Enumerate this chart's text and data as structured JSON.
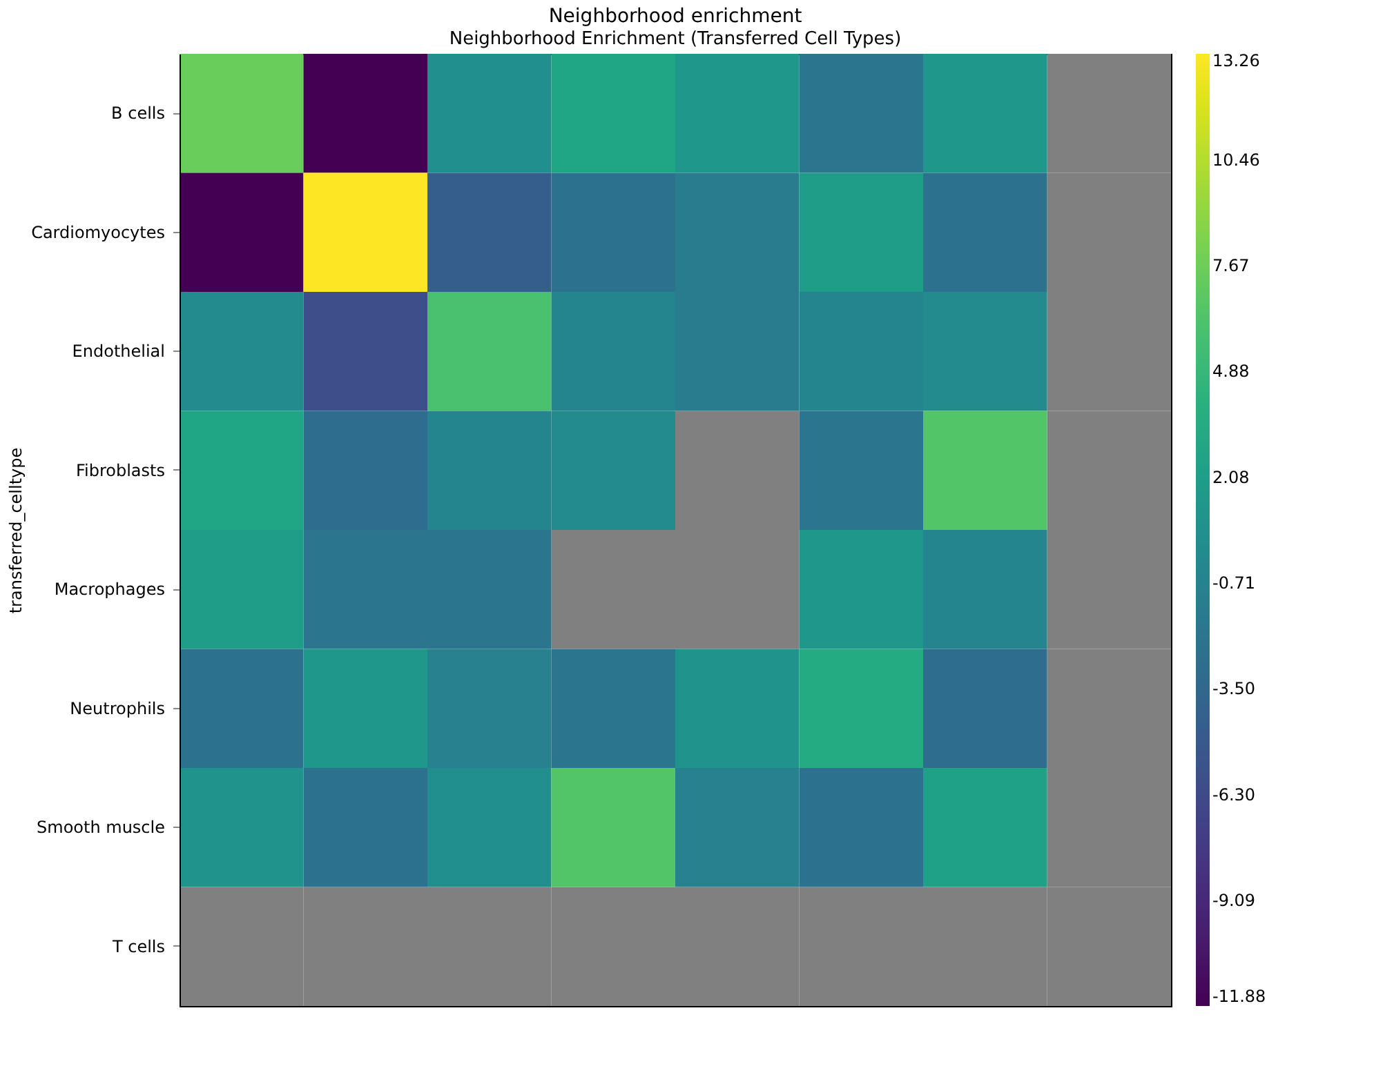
{
  "chart_data": {
    "type": "heatmap",
    "title": "Neighborhood enrichment",
    "subtitle": "Neighborhood Enrichment (Transferred Cell Types)",
    "ylabel": "transferred_celltype",
    "categories": [
      null,
      null,
      null,
      null,
      null,
      null,
      null,
      null
    ],
    "y_categories": [
      "B cells",
      "Cardiomyocytes",
      "Endothelial",
      "Fibroblasts",
      "Macrophages",
      "Neutrophils",
      "Smooth muscle",
      "T cells"
    ],
    "cells": [
      [
        7.5,
        -11.88,
        0.5,
        3.0,
        1.5,
        -2.0,
        1.5,
        null
      ],
      [
        -11.88,
        13.26,
        -4.5,
        -2.5,
        -1.5,
        2.0,
        -2.5,
        null
      ],
      [
        0.0,
        -6.0,
        6.0,
        -0.5,
        -1.5,
        -0.5,
        0.0,
        null
      ],
      [
        3.0,
        -3.0,
        -0.5,
        0.0,
        null,
        -2.0,
        6.5,
        null
      ],
      [
        2.0,
        -2.0,
        -2.0,
        null,
        null,
        1.5,
        -0.5,
        null
      ],
      [
        -2.5,
        1.5,
        -1.0,
        -2.0,
        1.0,
        3.5,
        -3.0,
        null
      ],
      [
        1.0,
        -2.5,
        0.5,
        6.5,
        -1.0,
        -2.5,
        2.5,
        null
      ],
      [
        null,
        null,
        null,
        null,
        null,
        null,
        null,
        null
      ]
    ],
    "clim": [
      -11.88,
      13.26
    ],
    "cticks": [
      -11.88,
      -9.09,
      {
        "value": -6.3,
        "label": "-6.30"
      },
      {
        "value": -3.5,
        "label": "-3.50"
      },
      -0.71,
      2.08,
      4.88,
      7.67,
      10.46,
      13.26
    ]
  }
}
